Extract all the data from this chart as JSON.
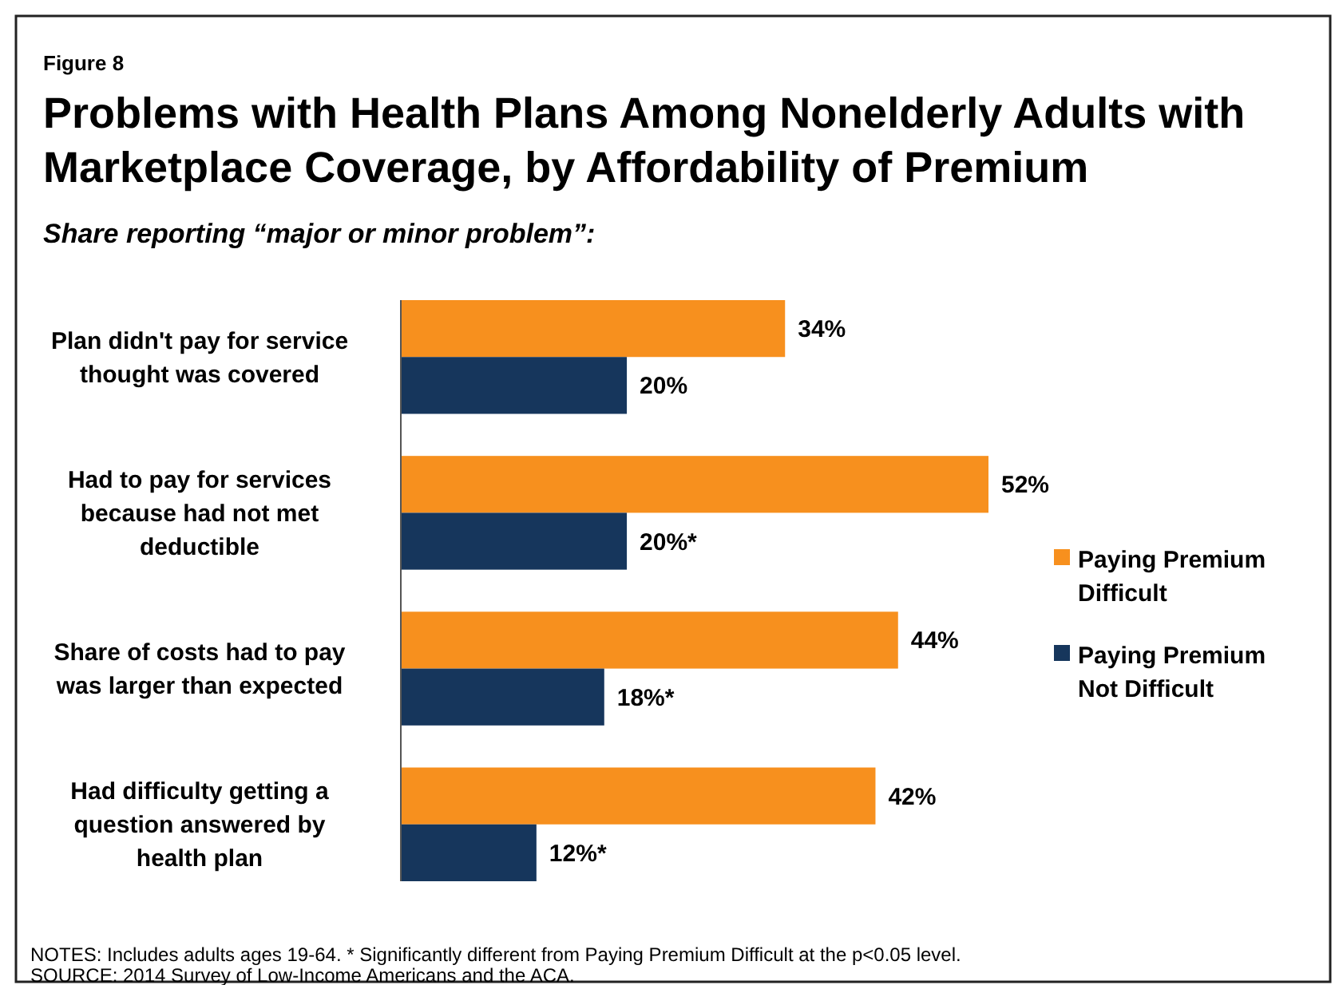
{
  "chart_data": {
    "type": "bar",
    "orientation": "horizontal",
    "title": "Problems with Health Plans Among Nonelderly Adults with Marketplace Coverage, by Affordability of Premium",
    "subtitle": "Share reporting “major or minor problem”:",
    "annotations": [
      "Figure 8",
      "NOTES: Includes adults ages 19-64. * Significantly different from Paying Premium Difficult at the p<0.05 level.",
      "SOURCE: 2014 Survey of Low-Income Americans and the ACA."
    ],
    "categories": [
      "Plan didn't pay for service thought was covered",
      "Had to pay for services because had not met deductible",
      "Share of costs had to pay was larger than expected",
      "Had difficulty getting a question answered by health plan"
    ],
    "series": [
      {
        "name": "Paying Premium Difficult",
        "color": "#f7901e",
        "values": [
          34,
          52,
          44,
          42
        ],
        "value_labels": [
          "34%",
          "52%",
          "44%",
          "42%"
        ]
      },
      {
        "name": "Paying Premium Not Difficult",
        "color": "#16365c",
        "values": [
          20,
          20,
          18,
          12
        ],
        "value_labels": [
          "20%",
          "20%*",
          "18%*",
          "12%*"
        ]
      }
    ],
    "tick_labels": "y",
    "legend": "right"
  }
}
